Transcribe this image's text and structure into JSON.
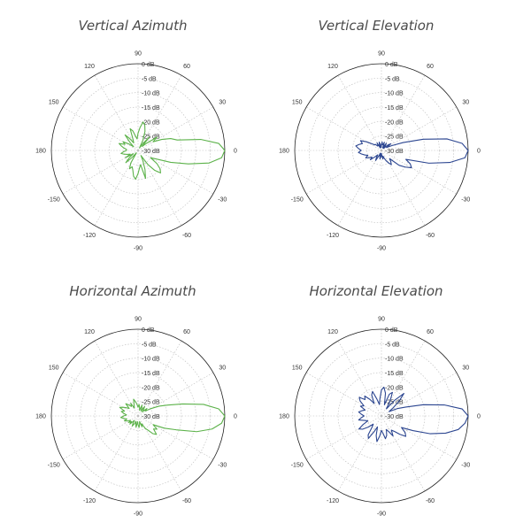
{
  "chart_data": [
    {
      "type": "polar-line",
      "title": "Vertical Azimuth",
      "color": "#5cb24a",
      "angle_ticks": [
        "0",
        "30",
        "60",
        "90",
        "120",
        "150",
        "180",
        "-150",
        "-120",
        "-90",
        "-60",
        "-30"
      ],
      "radial_ticks": [
        "0 dB",
        "-5 dB",
        "-10 dB",
        "-15 dB",
        "-20 dB",
        "-25 dB",
        "-30 dB"
      ],
      "rlim": [
        -30,
        0
      ],
      "series": [
        {
          "theta": [
            0,
            5,
            10,
            15,
            20,
            25,
            30,
            35,
            40,
            45,
            50,
            55,
            60,
            65,
            70,
            75,
            80,
            85,
            90,
            95,
            100,
            105,
            110,
            115,
            120,
            125,
            130,
            135,
            140,
            145,
            150,
            155,
            160,
            165,
            170,
            175,
            180,
            185,
            190,
            195,
            200,
            205,
            210,
            215,
            220,
            225,
            230,
            235,
            240,
            245,
            250,
            255,
            260,
            265,
            270,
            275,
            280,
            285,
            290,
            295,
            300,
            305,
            310,
            315,
            320,
            325,
            330,
            335,
            340,
            345,
            350,
            355
          ],
          "r": [
            0,
            -2,
            -8,
            -16,
            -18,
            -21,
            -24,
            -22,
            -26,
            -28,
            -24,
            -27,
            -29,
            -26,
            -23,
            -21,
            -20,
            -22,
            -24,
            -26,
            -25,
            -23,
            -22,
            -26,
            -27,
            -25,
            -23,
            -26,
            -28,
            -26,
            -24,
            -25,
            -23,
            -24,
            -25,
            -26,
            -26,
            -25,
            -24,
            -25,
            -26,
            -27,
            -25,
            -28,
            -26,
            -24,
            -27,
            -29,
            -25,
            -23,
            -24,
            -23,
            -21,
            -20,
            -22,
            -24,
            -25,
            -20,
            -23,
            -26,
            -28,
            -24,
            -21,
            -19,
            -20,
            -22,
            -25,
            -23,
            -18,
            -12,
            -5,
            -1
          ]
        }
      ]
    },
    {
      "type": "polar-line",
      "title": "Vertical Elevation",
      "color": "#2b4590",
      "angle_ticks": [
        "0",
        "30",
        "60",
        "90",
        "120",
        "150",
        "180",
        "-150",
        "-120",
        "-90",
        "-60",
        "-30"
      ],
      "radial_ticks": [
        "0 dB",
        "-5 dB",
        "-10 dB",
        "-15 dB",
        "-20 dB",
        "-25 dB",
        "-30 dB"
      ],
      "rlim": [
        -30,
        0
      ],
      "series": [
        {
          "theta": [
            0,
            5,
            10,
            15,
            20,
            25,
            30,
            35,
            40,
            45,
            50,
            55,
            60,
            65,
            70,
            75,
            80,
            85,
            90,
            95,
            100,
            105,
            110,
            115,
            120,
            125,
            130,
            135,
            140,
            145,
            150,
            155,
            160,
            165,
            170,
            175,
            180,
            185,
            190,
            195,
            200,
            205,
            210,
            215,
            220,
            225,
            230,
            235,
            240,
            245,
            250,
            255,
            260,
            265,
            270,
            275,
            280,
            285,
            290,
            295,
            300,
            305,
            310,
            315,
            320,
            325,
            330,
            335,
            340,
            345,
            350,
            355
          ],
          "r": [
            0,
            -2,
            -7,
            -15,
            -22,
            -26,
            -28,
            -26,
            -27,
            -29,
            -28,
            -27,
            -28,
            -29,
            -27,
            -28,
            -28,
            -27,
            -28,
            -29,
            -28,
            -27,
            -28,
            -29,
            -27,
            -28,
            -28,
            -27,
            -27,
            -26,
            -24,
            -22,
            -23,
            -22,
            -21,
            -22,
            -23,
            -22,
            -23,
            -24,
            -25,
            -24,
            -25,
            -26,
            -25,
            -27,
            -28,
            -27,
            -26,
            -28,
            -29,
            -28,
            -27,
            -28,
            -29,
            -28,
            -27,
            -28,
            -27,
            -26,
            -25,
            -24,
            -25,
            -26,
            -22,
            -20,
            -18,
            -19,
            -21,
            -13,
            -6,
            -1
          ]
        }
      ]
    },
    {
      "type": "polar-line",
      "title": "Horizontal Azimuth",
      "color": "#5cb24a",
      "angle_ticks": [
        "0",
        "30",
        "60",
        "90",
        "120",
        "150",
        "180",
        "-150",
        "-120",
        "-90",
        "-60",
        "-30"
      ],
      "radial_ticks": [
        "0 dB",
        "-5 dB",
        "-10 dB",
        "-15 dB",
        "-20 dB",
        "-25 dB",
        "-30 dB"
      ],
      "rlim": [
        -30,
        0
      ],
      "series": [
        {
          "theta": [
            0,
            5,
            10,
            15,
            20,
            25,
            30,
            35,
            40,
            45,
            50,
            55,
            60,
            65,
            70,
            75,
            80,
            85,
            90,
            95,
            100,
            105,
            110,
            115,
            120,
            125,
            130,
            135,
            140,
            145,
            150,
            155,
            160,
            165,
            170,
            175,
            180,
            185,
            190,
            195,
            200,
            205,
            210,
            215,
            220,
            225,
            230,
            235,
            240,
            245,
            250,
            255,
            260,
            265,
            270,
            275,
            280,
            285,
            290,
            295,
            300,
            305,
            310,
            315,
            320,
            325,
            330,
            335,
            340,
            345,
            350,
            355
          ],
          "r": [
            0,
            -2,
            -7,
            -14,
            -19,
            -22,
            -25,
            -27,
            -26,
            -28,
            -27,
            -26,
            -28,
            -27,
            -26,
            -28,
            -27,
            -26,
            -27,
            -26,
            -25,
            -24,
            -26,
            -27,
            -25,
            -26,
            -25,
            -24,
            -26,
            -25,
            -24,
            -23,
            -25,
            -24,
            -25,
            -26,
            -25,
            -24,
            -25,
            -26,
            -25,
            -26,
            -27,
            -26,
            -27,
            -26,
            -28,
            -27,
            -26,
            -27,
            -28,
            -27,
            -26,
            -28,
            -27,
            -26,
            -27,
            -28,
            -26,
            -27,
            -25,
            -24,
            -22,
            -21,
            -23,
            -22,
            -24,
            -20,
            -16,
            -9,
            -4,
            -1
          ]
        }
      ]
    },
    {
      "type": "polar-line",
      "title": "Horizontal Elevation",
      "color": "#2b4590",
      "angle_ticks": [
        "0",
        "30",
        "60",
        "90",
        "120",
        "150",
        "180",
        "-150",
        "-120",
        "-90",
        "-60",
        "-30"
      ],
      "radial_ticks": [
        "0 dB",
        "-5 dB",
        "-10 dB",
        "-15 dB",
        "-20 dB",
        "-25 dB",
        "-30 dB"
      ],
      "rlim": [
        -30,
        0
      ],
      "series": [
        {
          "theta": [
            0,
            5,
            10,
            15,
            20,
            25,
            30,
            35,
            40,
            45,
            50,
            55,
            60,
            65,
            70,
            75,
            80,
            85,
            90,
            95,
            100,
            105,
            110,
            115,
            120,
            125,
            130,
            135,
            140,
            145,
            150,
            155,
            160,
            165,
            170,
            175,
            180,
            185,
            190,
            195,
            200,
            205,
            210,
            215,
            220,
            225,
            230,
            235,
            240,
            245,
            250,
            255,
            260,
            265,
            270,
            275,
            280,
            285,
            290,
            295,
            300,
            305,
            310,
            315,
            320,
            325,
            330,
            335,
            340,
            345,
            350,
            355
          ],
          "r": [
            0,
            -2,
            -8,
            -15,
            -21,
            -24,
            -27,
            -25,
            -22,
            -19,
            -23,
            -27,
            -24,
            -21,
            -22,
            -26,
            -22,
            -20,
            -21,
            -24,
            -26,
            -24,
            -21,
            -22,
            -25,
            -23,
            -21,
            -22,
            -20,
            -21,
            -23,
            -22,
            -24,
            -23,
            -22,
            -23,
            -24,
            -23,
            -22,
            -24,
            -25,
            -23,
            -21,
            -22,
            -24,
            -26,
            -25,
            -22,
            -21,
            -24,
            -26,
            -23,
            -21,
            -23,
            -25,
            -24,
            -22,
            -23,
            -25,
            -24,
            -22,
            -24,
            -23,
            -21,
            -19,
            -20,
            -22,
            -18,
            -12,
            -7,
            -3,
            -1
          ]
        }
      ]
    }
  ]
}
